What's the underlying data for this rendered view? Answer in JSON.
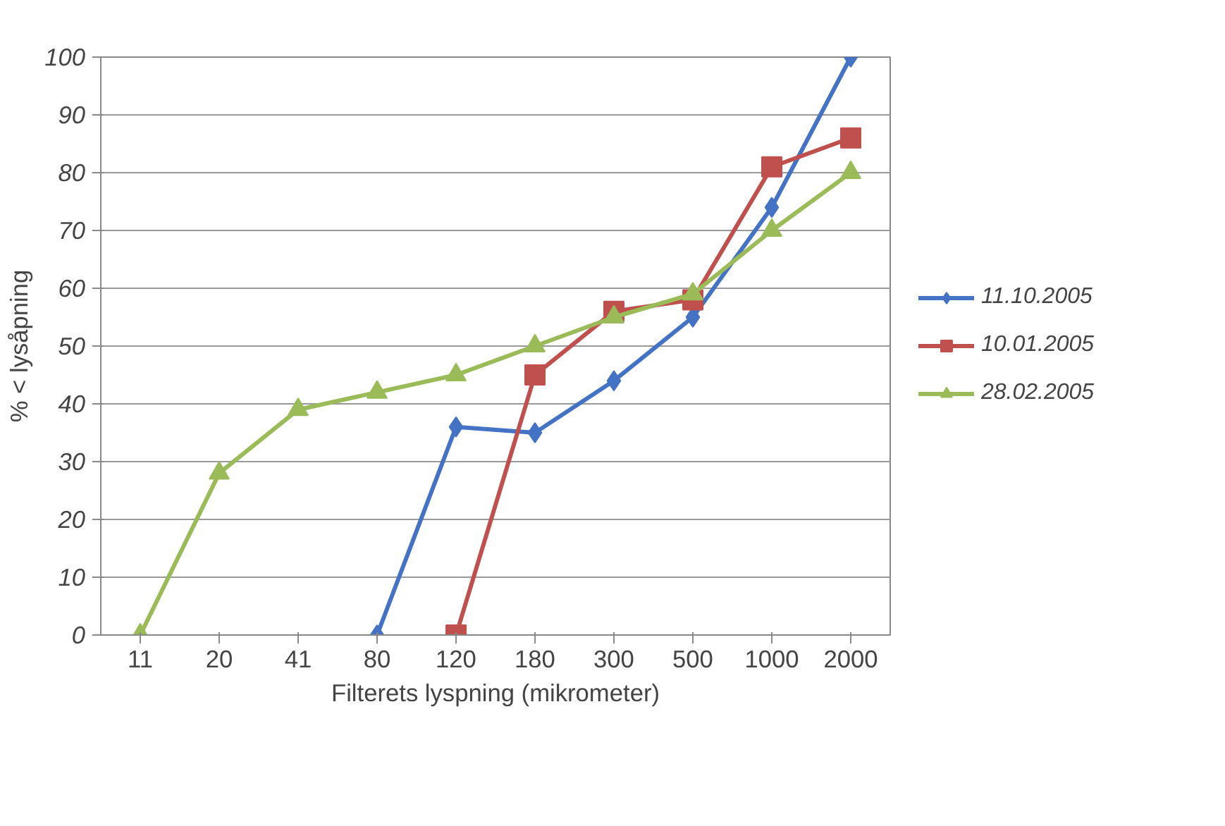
{
  "chart_data": {
    "type": "line",
    "xlabel": "Filterets lyspning (mikrometer)",
    "ylabel": "% < lysåpning",
    "categories": [
      "11",
      "20",
      "41",
      "80",
      "120",
      "180",
      "300",
      "500",
      "1000",
      "2000"
    ],
    "series": [
      {
        "name": "11.10.2005",
        "color": "#4472c4",
        "marker": "diamond",
        "values": [
          null,
          null,
          null,
          0,
          36,
          35,
          44,
          55,
          74,
          100
        ]
      },
      {
        "name": "10.01.2005",
        "color": "#c0504d",
        "marker": "square",
        "values": [
          null,
          null,
          null,
          null,
          0,
          45,
          56,
          58,
          81,
          86
        ]
      },
      {
        "name": "28.02.2005",
        "color": "#9bbb59",
        "marker": "triangle",
        "values": [
          0,
          28,
          39,
          42,
          45,
          50,
          55,
          59,
          70,
          80
        ]
      }
    ],
    "ylim": [
      0,
      100
    ],
    "yticks": [
      0,
      10,
      20,
      30,
      40,
      50,
      60,
      70,
      80,
      90,
      100
    ],
    "grid": "y",
    "legend": "right"
  }
}
